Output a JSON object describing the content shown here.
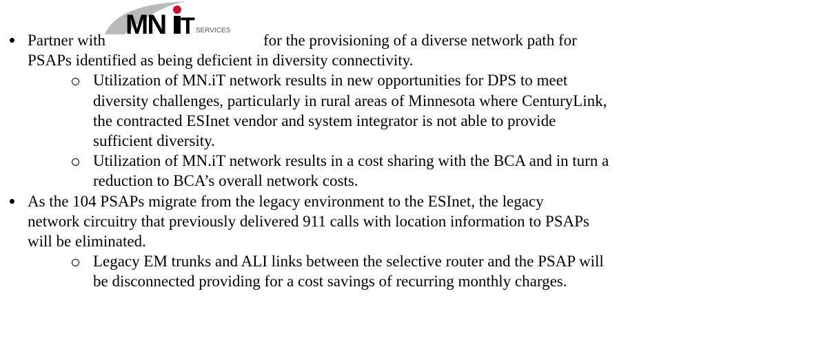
{
  "logo": {
    "mark": "MN",
    "accent": "T",
    "suffix": "SERVICES"
  },
  "items": [
    {
      "lead": "Partner with",
      "after_logo": "for the provisioning of a diverse network path for",
      "lines": [
        "PSAPs identified as being deficient in diversity connectivity."
      ],
      "subitems": [
        {
          "lines": [
            "Utilization of MN.iT network results in new opportunities for DPS to meet",
            "diversity challenges, particularly in rural areas of Minnesota where CenturyLink,",
            "the contracted ESInet vendor and system integrator is not able to provide",
            "sufficient diversity."
          ]
        },
        {
          "lines": [
            "Utilization of MN.iT network results in a cost sharing with the BCA and in turn a",
            "reduction to BCA’s overall network costs."
          ]
        }
      ]
    },
    {
      "lines": [
        "As the 104 PSAPs migrate from the legacy environment to the ESInet, the legacy",
        "network circuitry that previously delivered 911 calls with location information to PSAPs",
        "will be eliminated."
      ],
      "subitems": [
        {
          "lines": [
            "Legacy EM trunks and ALI links between the selective router and the PSAP will",
            "be disconnected providing for a cost savings of recurring monthly charges."
          ]
        }
      ]
    }
  ]
}
